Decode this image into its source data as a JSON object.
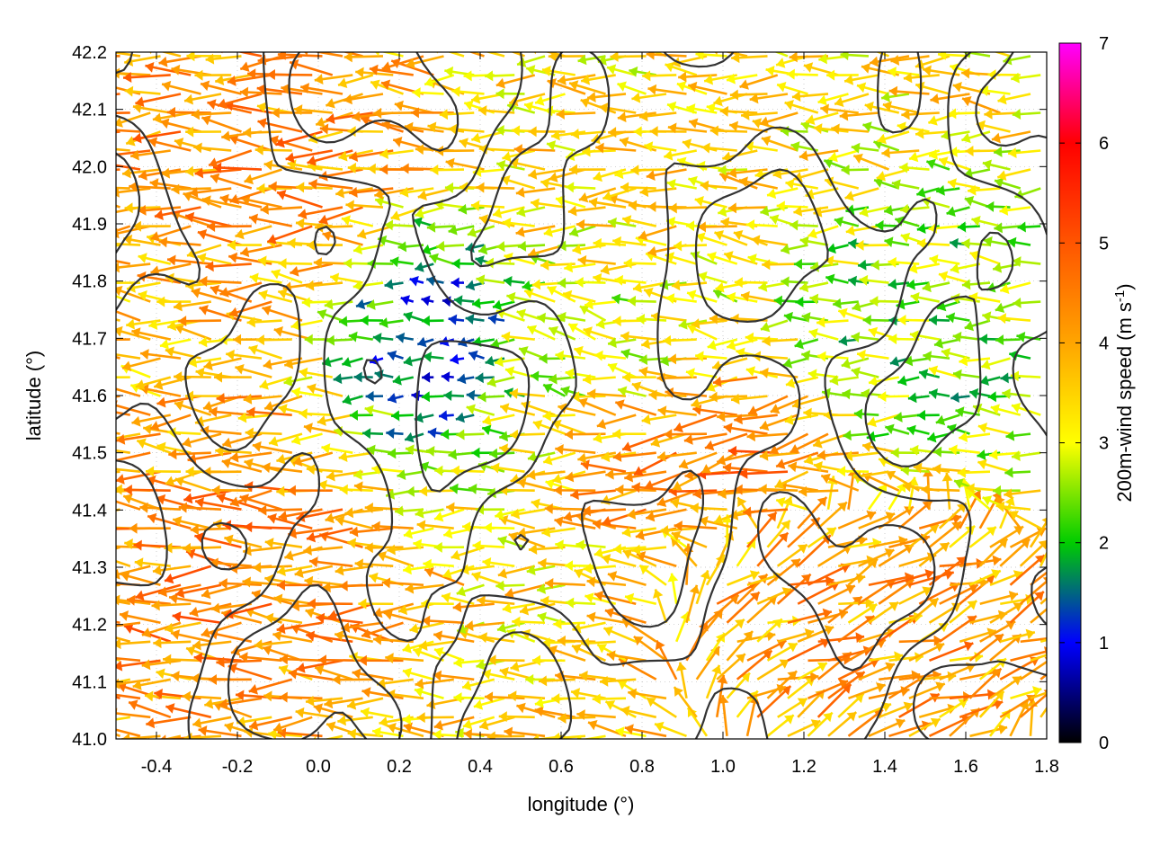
{
  "chart_data": {
    "type": "vector-field",
    "xlabel": "longitude (°)",
    "ylabel": "latitude (°)",
    "xlim": [
      -0.5,
      1.8
    ],
    "ylim": [
      41.0,
      42.2
    ],
    "xticks": [
      "-0.4",
      "-0.2",
      "0.0",
      "0.2",
      "0.4",
      "0.6",
      "0.8",
      "1.0",
      "1.2",
      "1.4",
      "1.6",
      "1.8"
    ],
    "yticks": [
      "41.0",
      "41.1",
      "41.2",
      "41.3",
      "41.4",
      "41.5",
      "41.6",
      "41.7",
      "41.8",
      "41.9",
      "42.0",
      "42.1",
      "42.2"
    ],
    "grid": true,
    "colorbar": {
      "label_main": "200m-wind speed (m s",
      "label_sup": "-1",
      "label_close": ")",
      "range": [
        0,
        7
      ],
      "ticks": [
        "0",
        "1",
        "2",
        "3",
        "4",
        "5",
        "6",
        "7"
      ],
      "palette": [
        "#000000",
        "#0000ff",
        "#00cc00",
        "#ffff00",
        "#ffa500",
        "#ff5500",
        "#ff0000",
        "#ff00ff"
      ]
    },
    "contour_color": "#333333",
    "field_regions": [
      {
        "lon": [
          -0.5,
          0.2
        ],
        "lat": [
          41.85,
          42.2
        ],
        "speed": 4.4,
        "direction": "west"
      },
      {
        "lon": [
          -0.5,
          0.1
        ],
        "lat": [
          41.0,
          41.5
        ],
        "speed": 4.5,
        "direction": "west"
      },
      {
        "lon": [
          0.15,
          0.45
        ],
        "lat": [
          41.55,
          41.85
        ],
        "speed": 1.2,
        "direction": "west"
      },
      {
        "lon": [
          0.55,
          1.0
        ],
        "lat": [
          41.55,
          41.75
        ],
        "speed": 2.7,
        "direction": "west-northwest"
      },
      {
        "lon": [
          0.75,
          1.2
        ],
        "lat": [
          41.45,
          41.62
        ],
        "speed": 4.8,
        "direction": "west-southwest"
      },
      {
        "lon": [
          1.0,
          1.8
        ],
        "lat": [
          41.0,
          41.35
        ],
        "speed": 4.2,
        "direction": "east-northeast"
      },
      {
        "lon": [
          1.3,
          1.8
        ],
        "lat": [
          41.55,
          41.9
        ],
        "speed": 2.2,
        "direction": "west"
      }
    ]
  }
}
